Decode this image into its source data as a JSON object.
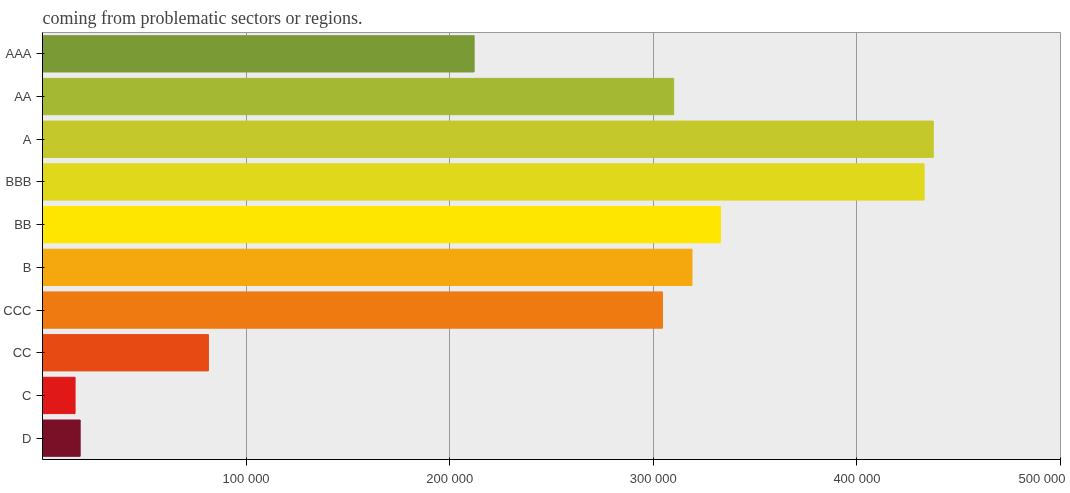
{
  "chart_data": {
    "type": "bar",
    "orientation": "horizontal",
    "title": "coming from problematic sectors or regions.",
    "categories": [
      "AAA",
      "AA",
      "A",
      "BBB",
      "BB",
      "B",
      "CCC",
      "CC",
      "C",
      "D"
    ],
    "values": [
      212000,
      310000,
      437500,
      433000,
      333000,
      319000,
      304500,
      81500,
      16000,
      18500
    ],
    "colors": [
      "#7a9a35",
      "#a4b833",
      "#c4c82a",
      "#e0d81a",
      "#ffe600",
      "#f5a80e",
      "#ef7a12",
      "#e84a14",
      "#e01818",
      "#7a1028"
    ],
    "xlim": [
      0,
      500000
    ],
    "xticks": [
      {
        "value": 100000,
        "label": "100 000"
      },
      {
        "value": 200000,
        "label": "200 000"
      },
      {
        "value": 300000,
        "label": "300 000"
      },
      {
        "value": 400000,
        "label": "400 000"
      },
      {
        "value": 500000,
        "label": "500 000"
      }
    ],
    "grid": "x"
  }
}
